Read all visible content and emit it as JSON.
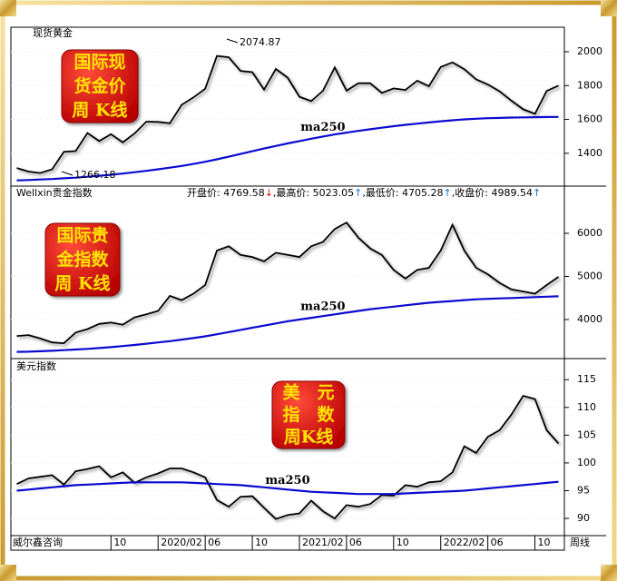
{
  "chart_data": [
    {
      "type": "line",
      "title": "现货黄金",
      "badge": [
        "国际现",
        "货金价",
        "周 K线"
      ],
      "annotations": [
        "2074.87",
        "1266.18"
      ],
      "ylim": [
        1206,
        2134
      ],
      "yticks": [
        1400,
        1600,
        1800,
        2000
      ],
      "series": [
        {
          "color": "#000000",
          "values": [
            1313,
            1292,
            1283,
            1305,
            1409,
            1413,
            1520,
            1472,
            1513,
            1464,
            1517,
            1587,
            1585,
            1577,
            1686,
            1730,
            1781,
            1975,
            1967,
            1886,
            1879,
            1776,
            1898,
            1847,
            1734,
            1708,
            1769,
            1907,
            1770,
            1814,
            1814,
            1757,
            1783,
            1774,
            1829,
            1796,
            1909,
            1937,
            1897,
            1837,
            1807,
            1766,
            1711,
            1660,
            1633,
            1768,
            1800
          ]
        },
        {
          "name": "ma250",
          "color": "#0a0ad0",
          "values": [
            1240,
            1242,
            1245,
            1248,
            1252,
            1256,
            1261,
            1267,
            1273,
            1280,
            1288,
            1296,
            1305,
            1315,
            1325,
            1337,
            1350,
            1364,
            1380,
            1396,
            1412,
            1428,
            1443,
            1458,
            1472,
            1486,
            1499,
            1511,
            1522,
            1532,
            1542,
            1551,
            1560,
            1568,
            1575,
            1582,
            1589,
            1595,
            1600,
            1604,
            1607,
            1609,
            1611,
            1612,
            1613,
            1614,
            1615
          ]
        }
      ]
    },
    {
      "type": "line",
      "title": "Wellxin贵金指数",
      "badge": [
        "国际贵",
        "金指数",
        "周 K线"
      ],
      "quote_separator": ",",
      "quote": [
        {
          "text": "开盘价: 4769.58",
          "arrow": "↓",
          "arrow_color": "#e01010"
        },
        {
          "text": "最高价: 5023.05",
          "arrow": "↑",
          "arrow_color": "#1070d0"
        },
        {
          "text": "最低价: 4705.28",
          "arrow": "↑",
          "arrow_color": "#1070d0"
        },
        {
          "text": "收盘价: 4989.54",
          "arrow": "↑",
          "arrow_color": "#1070d0"
        }
      ],
      "ylim": [
        3095,
        7095
      ],
      "yticks": [
        4000,
        5000,
        6000
      ],
      "series": [
        {
          "color": "#000000",
          "values": [
            3620,
            3640,
            3560,
            3470,
            3450,
            3700,
            3780,
            3900,
            3930,
            3880,
            4050,
            4120,
            4200,
            4550,
            4450,
            4600,
            4800,
            5600,
            5700,
            5500,
            5450,
            5350,
            5550,
            5500,
            5450,
            5700,
            5800,
            6100,
            6250,
            5900,
            5650,
            5500,
            5150,
            4950,
            5150,
            5200,
            5600,
            6200,
            5600,
            5200,
            5050,
            4850,
            4700,
            4650,
            4600,
            4800,
            4990
          ]
        },
        {
          "name": "ma250",
          "color": "#0a0ad0",
          "values": [
            3250,
            3255,
            3265,
            3275,
            3290,
            3305,
            3320,
            3340,
            3360,
            3385,
            3410,
            3440,
            3470,
            3500,
            3535,
            3570,
            3610,
            3660,
            3710,
            3760,
            3810,
            3860,
            3910,
            3960,
            4000,
            4040,
            4080,
            4120,
            4160,
            4200,
            4240,
            4270,
            4300,
            4330,
            4360,
            4390,
            4410,
            4430,
            4450,
            4470,
            4480,
            4490,
            4500,
            4510,
            4520,
            4530,
            4540
          ]
        }
      ]
    },
    {
      "type": "line",
      "title": "美元指数",
      "badge": [
        "美　元",
        "指　数",
        "周K线"
      ],
      "categories": [
        null,
        null,
        null,
        null,
        null,
        null,
        null,
        null,
        "10",
        null,
        null,
        null,
        "2020/02",
        null,
        null,
        null,
        "06",
        null,
        null,
        null,
        "10",
        null,
        null,
        null,
        "2021/02",
        null,
        null,
        null,
        "06",
        null,
        null,
        null,
        "10",
        null,
        null,
        null,
        "2022/02",
        null,
        null,
        null,
        "06",
        null,
        null,
        null,
        "10",
        null,
        null
      ],
      "ylim": [
        86.9,
        118.8
      ],
      "yticks": [
        90,
        95,
        100,
        105,
        110,
        115
      ],
      "series": [
        {
          "color": "#000000",
          "values": [
            96.2,
            97.2,
            97.5,
            97.8,
            96.1,
            98.5,
            98.9,
            99.4,
            97.4,
            98.3,
            96.4,
            97.4,
            98.1,
            99.0,
            99.0,
            98.3,
            97.4,
            93.3,
            92.1,
            93.9,
            94.0,
            91.9,
            89.9,
            90.6,
            90.9,
            93.2,
            91.3,
            90.0,
            92.4,
            92.1,
            92.6,
            94.2,
            94.1,
            96.0,
            95.7,
            96.5,
            96.7,
            98.3,
            103.0,
            101.8,
            104.7,
            105.9,
            108.7,
            112.1,
            111.5,
            105.9,
            103.5
          ]
        },
        {
          "name": "ma250",
          "color": "#0a0ad0",
          "values": [
            95.0,
            95.2,
            95.4,
            95.6,
            95.8,
            96.0,
            96.1,
            96.2,
            96.3,
            96.4,
            96.5,
            96.5,
            96.5,
            96.5,
            96.5,
            96.4,
            96.3,
            96.2,
            96.1,
            96.0,
            95.8,
            95.6,
            95.4,
            95.2,
            95.0,
            94.8,
            94.7,
            94.6,
            94.5,
            94.4,
            94.4,
            94.4,
            94.4,
            94.5,
            94.6,
            94.7,
            94.8,
            94.9,
            95.0,
            95.2,
            95.4,
            95.6,
            95.8,
            96.0,
            96.2,
            96.4,
            96.6
          ]
        }
      ]
    }
  ],
  "footer": {
    "left": "威尔鑫咨询",
    "right": "周线"
  }
}
